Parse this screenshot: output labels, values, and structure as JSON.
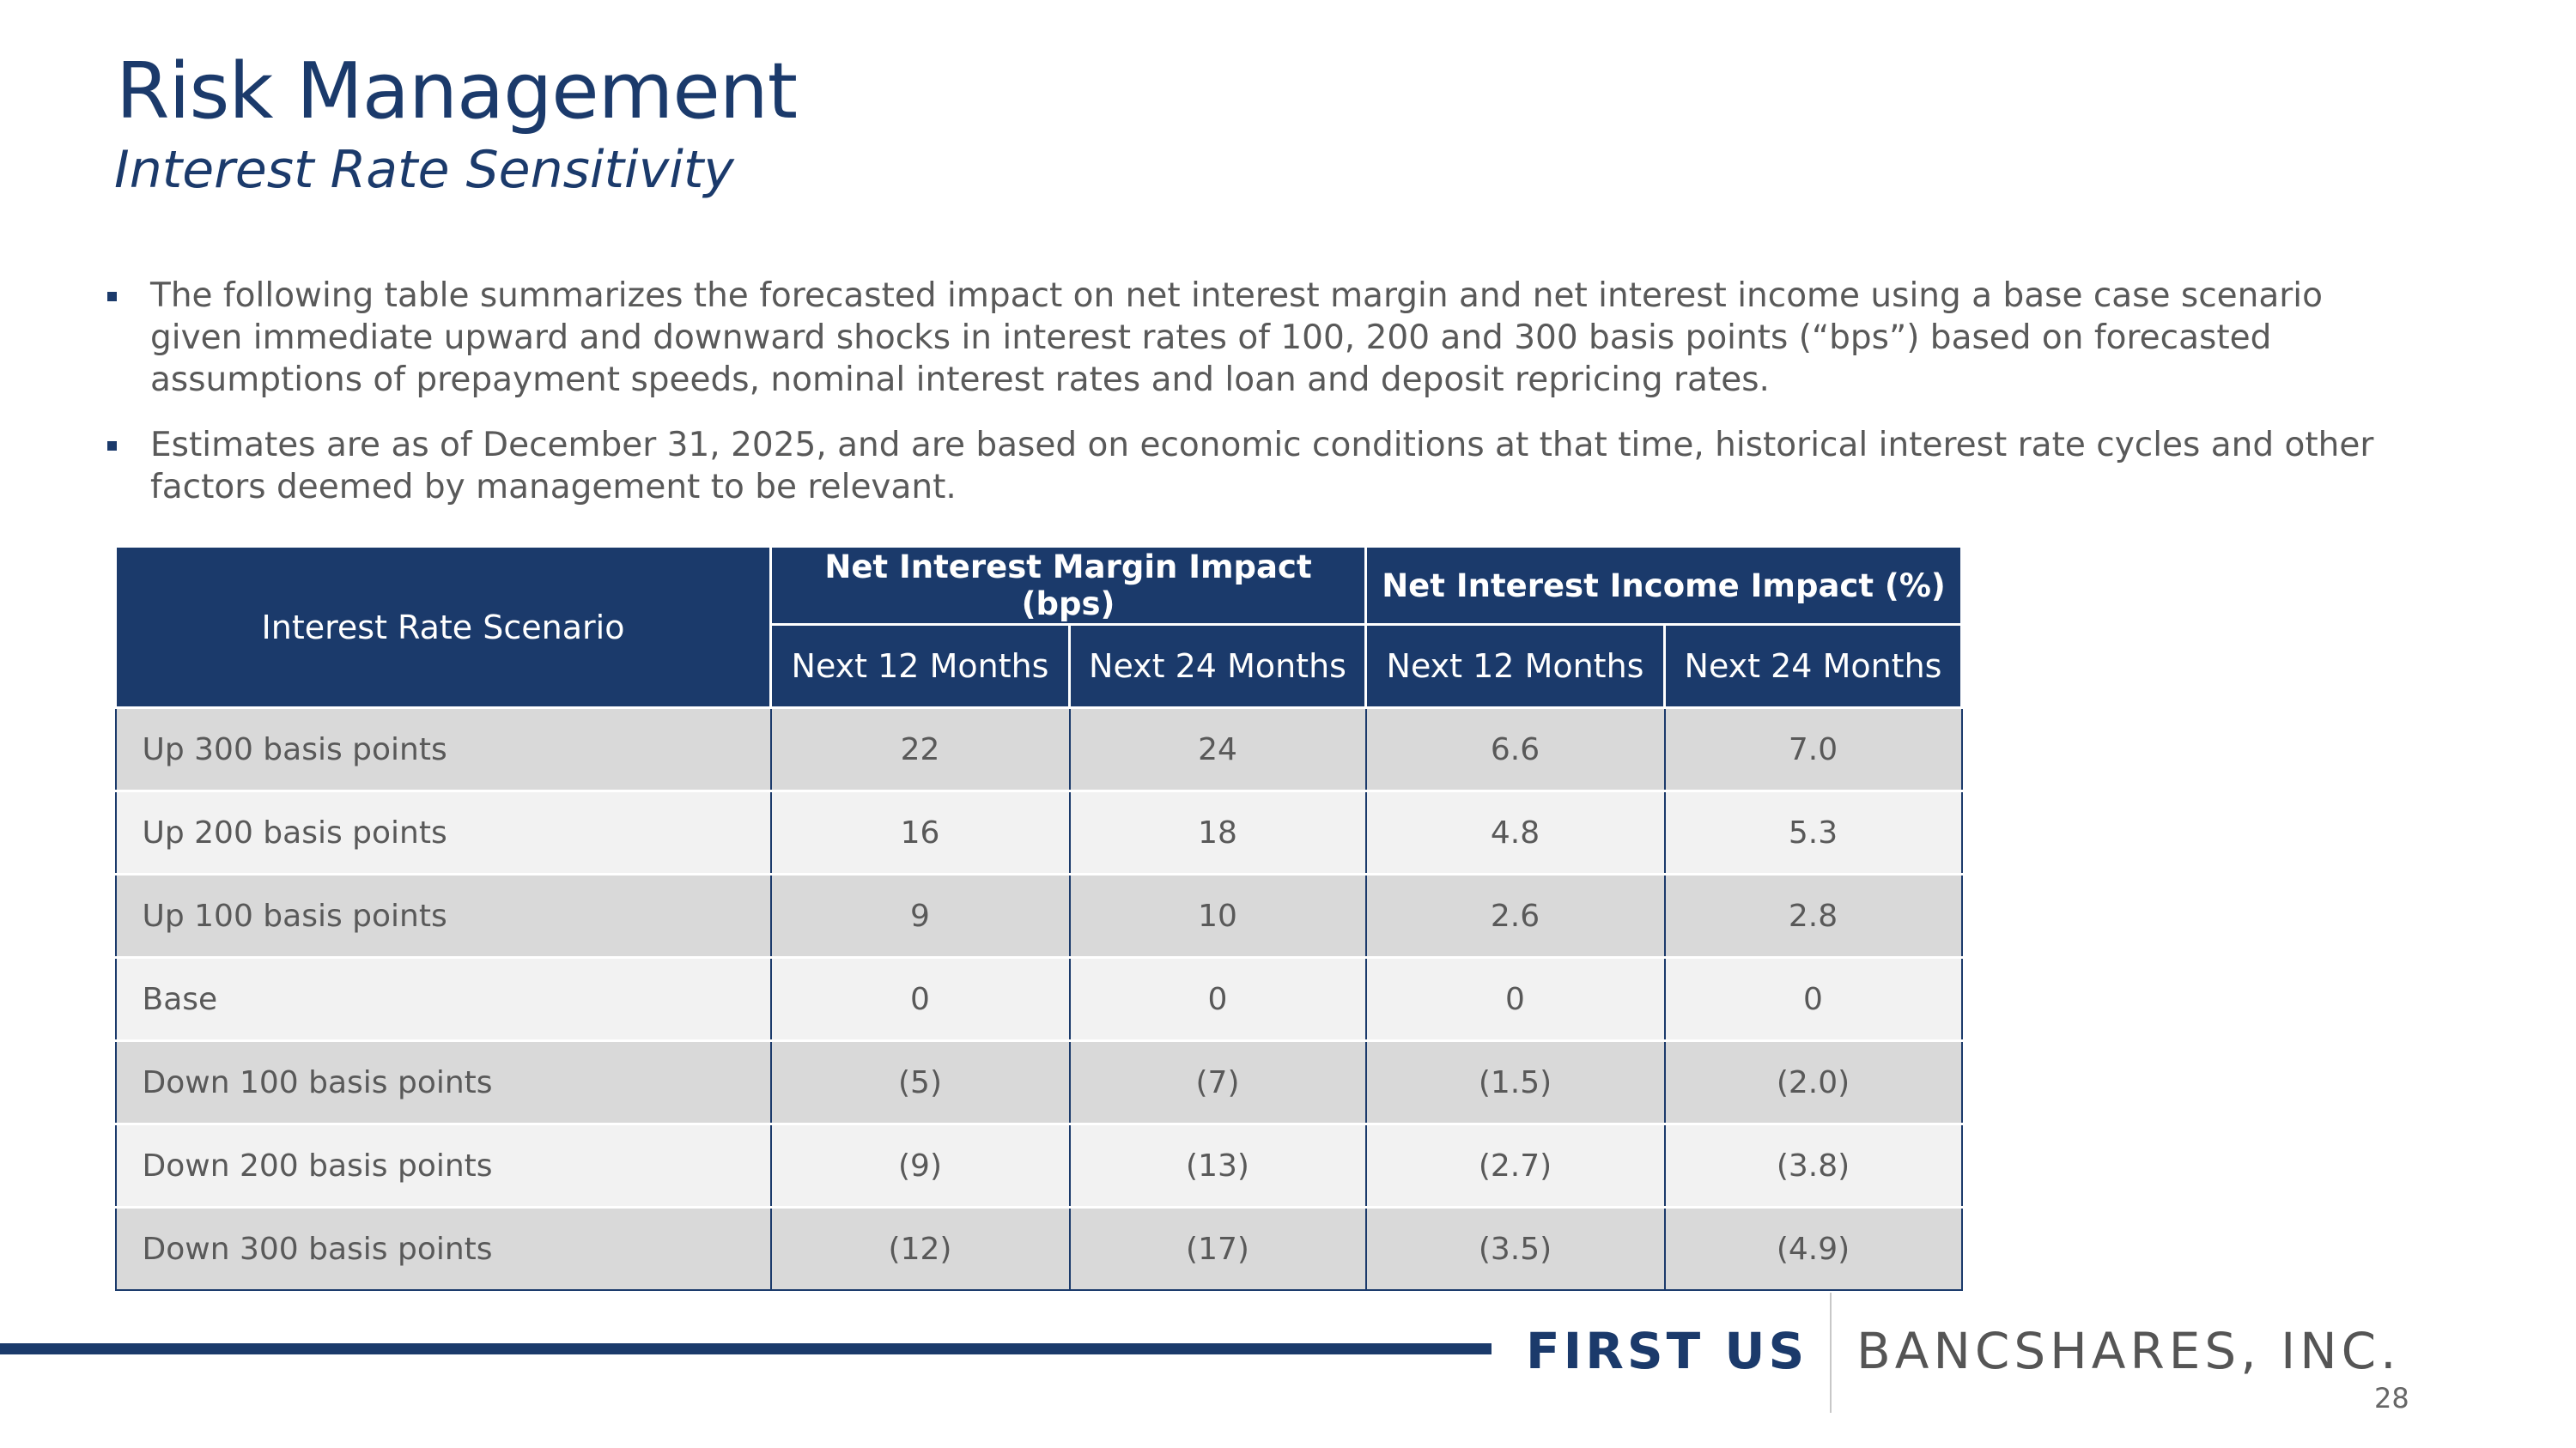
{
  "header": {
    "title": "Risk Management",
    "subtitle": "Interest Rate Sensitivity"
  },
  "bullets": [
    "The following table summarizes the forecasted impact on net interest margin and net interest income using a base case scenario given immediate upward and downward shocks in interest rates of 100, 200 and 300 basis points (“bps”) based on forecasted assumptions of prepayment speeds, nominal interest rates and loan and deposit repricing rates.",
    "Estimates are as of December 31, 2025, and are based on economic conditions at that time, historical interest rate cycles and other factors deemed by management to be relevant."
  ],
  "table": {
    "row_header": "Interest Rate Scenario",
    "groups": [
      "Net Interest Margin Impact (bps)",
      "Net Interest Income Impact (%)"
    ],
    "columns": [
      "Next 12 Months",
      "Next 24 Months",
      "Next 12 Months",
      "Next 24 Months"
    ],
    "rows": [
      [
        "Up 300 basis points",
        "22",
        "24",
        "6.6",
        "7.0"
      ],
      [
        "Up 200 basis points",
        "16",
        "18",
        "4.8",
        "5.3"
      ],
      [
        "Up 100 basis points",
        "9",
        "10",
        "2.6",
        "2.8"
      ],
      [
        "Base",
        "0",
        "0",
        "0",
        "0"
      ],
      [
        "Down 100 basis points",
        "(5)",
        "(7)",
        "(1.5)",
        "(2.0)"
      ],
      [
        "Down 200 basis points",
        "(9)",
        "(13)",
        "(2.7)",
        "(3.8)"
      ],
      [
        "Down 300 basis points",
        "(12)",
        "(17)",
        "(3.5)",
        "(4.9)"
      ]
    ]
  },
  "footer": {
    "brand_bold": "FIRST US",
    "brand_light": "BANCSHARES, INC.",
    "page_number": "28"
  }
}
